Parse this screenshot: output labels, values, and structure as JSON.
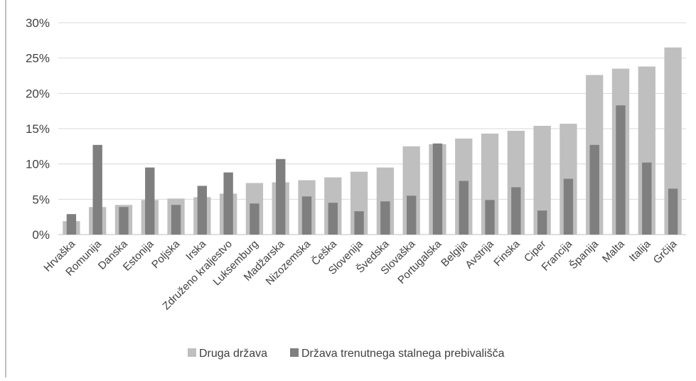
{
  "chart_data": {
    "type": "bar",
    "grouping": "overlapping",
    "categories": [
      "Hrvaška",
      "Romunija",
      "Danska",
      "Estonija",
      "Poljska",
      "Irska",
      "Združeno kraljestvo",
      "Luksemburg",
      "Madžarska",
      "Nizozemska",
      "Češka",
      "Slovenija",
      "Švedska",
      "Slovaška",
      "Portugalska",
      "Belgija",
      "Avstrija",
      "Finska",
      "Ciper",
      "Francija",
      "Španija",
      "Malta",
      "Italija",
      "Grčija"
    ],
    "series": [
      {
        "name": "Druga država",
        "color": "#bfbfbf",
        "values": [
          1.9,
          3.9,
          4.2,
          4.9,
          5.1,
          5.3,
          5.8,
          7.3,
          7.4,
          7.7,
          8.1,
          8.9,
          9.5,
          12.5,
          12.8,
          13.6,
          14.3,
          14.7,
          15.4,
          15.7,
          22.6,
          23.5,
          23.8,
          26.5
        ]
      },
      {
        "name": "Država trenutnega stalnega prebivališča",
        "color": "#7f7f7f",
        "values": [
          2.9,
          12.7,
          3.9,
          9.5,
          4.2,
          6.9,
          8.8,
          4.4,
          10.7,
          5.4,
          4.5,
          3.3,
          4.7,
          5.5,
          12.9,
          7.6,
          4.9,
          6.7,
          3.4,
          7.9,
          12.7,
          18.3,
          10.2,
          6.5
        ]
      }
    ],
    "yticks": [
      "0%",
      "5%",
      "10%",
      "15%",
      "20%",
      "25%",
      "30%"
    ],
    "ylim": [
      0,
      30
    ],
    "title": "",
    "xlabel": "",
    "ylabel": "",
    "grid": true,
    "legend_position": "bottom"
  }
}
